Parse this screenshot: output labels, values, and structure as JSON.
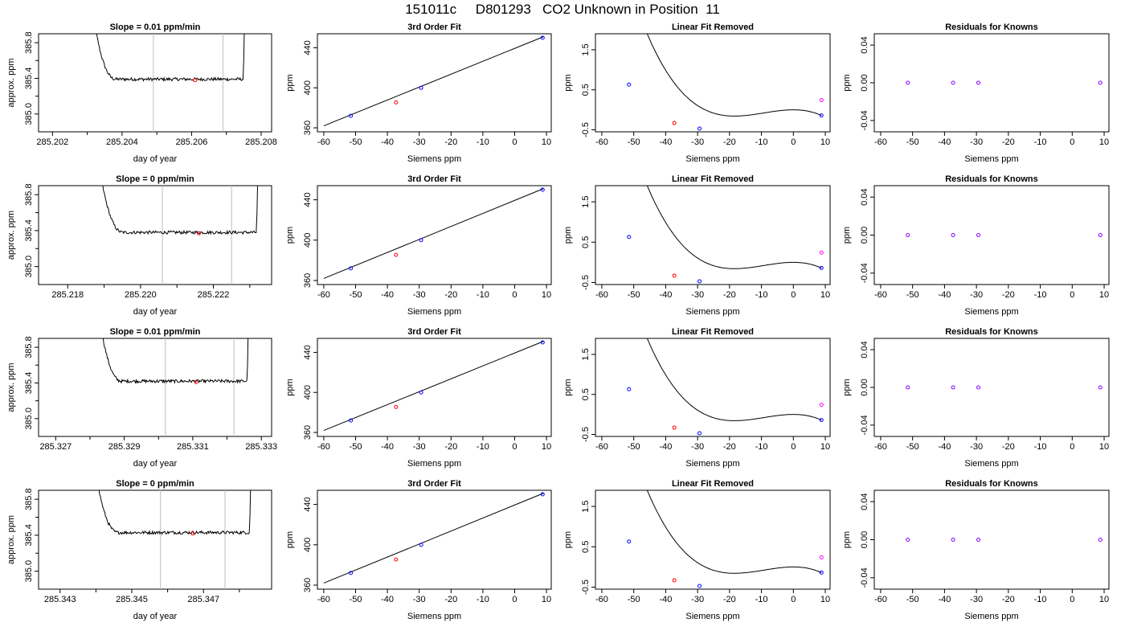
{
  "title": "151011c     D801293   CO2 Unknown in Position  11",
  "colors": {
    "known": "#0000ff",
    "unknown_fit": "#ff0000",
    "unknown_resid": "#ff00ff",
    "residual_pt": "#8000ff",
    "window": "#bebebe",
    "line": "#000000"
  },
  "chart_data": [
    {
      "type": "line",
      "title": "Slope =  0.01  ppm/min",
      "xlabel": "day of year",
      "ylabel": "approx. ppm",
      "xlim": [
        285.2016,
        285.2083
      ],
      "ylim": [
        384.8,
        385.9
      ],
      "xticks": [
        285.202,
        285.204,
        285.206,
        285.208
      ],
      "xtick_labels": [
        "285.202",
        "285.204",
        "285.206",
        "285.208"
      ],
      "yticks": [
        385.0,
        385.4,
        385.8
      ],
      "ytick_labels": [
        "385.0",
        "385.4",
        "385.8"
      ],
      "window": [
        285.2049,
        285.2069
      ],
      "trace_start": 285.2031,
      "trace_end": 285.2076,
      "plateau": 385.39,
      "mean_point": {
        "x": 285.2061,
        "y": 385.38
      }
    },
    {
      "type": "scatter",
      "title": "3rd Order Fit",
      "xlabel": "Siemens ppm",
      "ylabel": "ppm",
      "xlim": [
        -62,
        11.5
      ],
      "ylim": [
        356,
        454
      ],
      "xticks": [
        -60,
        -50,
        -40,
        -30,
        -20,
        -10,
        0,
        10
      ],
      "xtick_labels": [
        "-60",
        "-50",
        "-40",
        "-30",
        "-20",
        "-10",
        "0",
        "10"
      ],
      "yticks": [
        360,
        400,
        440
      ],
      "ytick_labels": [
        "360",
        "400",
        "440"
      ],
      "line": {
        "x": [
          -60,
          9
        ],
        "y": [
          362,
          451
        ]
      },
      "knowns": [
        {
          "x": -51.5,
          "y": 372
        },
        {
          "x": -29.4,
          "y": 400
        },
        {
          "x": 8.8,
          "y": 450
        }
      ],
      "unknown": {
        "x": -37.3,
        "y": 385.4
      }
    },
    {
      "type": "line",
      "title": "Linear Fit Removed",
      "xlabel": "Siemens ppm",
      "ylabel": "ppm",
      "xlim": [
        -62,
        11.5
      ],
      "ylim": [
        -0.55,
        1.9
      ],
      "xticks": [
        -60,
        -50,
        -40,
        -30,
        -20,
        -10,
        0,
        10
      ],
      "xtick_labels": [
        "-60",
        "-50",
        "-40",
        "-30",
        "-20",
        "-10",
        "0",
        "10"
      ],
      "yticks": [
        -0.5,
        0.5,
        1.5
      ],
      "ytick_labels": [
        "-0.5",
        "0.5",
        "1.5"
      ],
      "curve_coeffs": [
        0.0,
        0.0,
        -0.001383,
        -5e-05
      ],
      "curve_range": [
        -60,
        8.8
      ],
      "knowns": [
        {
          "x": -51.5,
          "y": 0.63
        },
        {
          "x": -29.4,
          "y": -0.47
        },
        {
          "x": 8.8,
          "y": -0.14
        }
      ],
      "unknown": {
        "x": -37.3,
        "y": -0.33
      },
      "unknown_resid": {
        "x": 8.8,
        "y": 0.24
      }
    },
    {
      "type": "scatter",
      "title": "Residuals for Knowns",
      "xlabel": "Siemens ppm",
      "ylabel": "ppm",
      "xlim": [
        -62,
        11.5
      ],
      "ylim": [
        -0.052,
        0.052
      ],
      "xticks": [
        -60,
        -50,
        -40,
        -30,
        -20,
        -10,
        0,
        10
      ],
      "xtick_labels": [
        "-60",
        "-50",
        "-40",
        "-30",
        "-20",
        "-10",
        "0",
        "10"
      ],
      "yticks": [
        -0.04,
        0.0,
        0.04
      ],
      "ytick_labels": [
        "-0.04",
        "0.00",
        "0.04"
      ],
      "points": [
        {
          "x": -51.5,
          "y": 0.0
        },
        {
          "x": -37.3,
          "y": 0.0
        },
        {
          "x": -29.4,
          "y": 0.0
        },
        {
          "x": 8.8,
          "y": 0.0
        }
      ]
    },
    {
      "type": "line",
      "title": "Slope =  0  ppm/min",
      "xlabel": "day of year",
      "ylabel": "approx. ppm",
      "xlim": [
        285.2172,
        285.2236
      ],
      "ylim": [
        384.8,
        385.9
      ],
      "xticks": [
        285.218,
        285.22,
        285.222
      ],
      "xtick_labels": [
        "285.218",
        "285.220",
        "285.222"
      ],
      "yticks": [
        385.0,
        385.4,
        385.8
      ],
      "ytick_labels": [
        "385.0",
        "385.4",
        "385.8"
      ],
      "window": [
        285.2206,
        285.2225
      ],
      "trace_start": 285.2188,
      "trace_end": 285.2233,
      "plateau": 385.38,
      "mean_point": {
        "x": 285.2216,
        "y": 385.37
      }
    },
    {
      "type": "scatter",
      "title": "3rd Order Fit",
      "xlabel": "Siemens ppm",
      "ylabel": "ppm",
      "xlim": [
        -62,
        11.5
      ],
      "ylim": [
        356,
        454
      ],
      "xticks": [
        -60,
        -50,
        -40,
        -30,
        -20,
        -10,
        0,
        10
      ],
      "xtick_labels": [
        "-60",
        "-50",
        "-40",
        "-30",
        "-20",
        "-10",
        "0",
        "10"
      ],
      "yticks": [
        360,
        400,
        440
      ],
      "ytick_labels": [
        "360",
        "400",
        "440"
      ],
      "line": {
        "x": [
          -60,
          9
        ],
        "y": [
          362,
          451
        ]
      },
      "knowns": [
        {
          "x": -51.5,
          "y": 372
        },
        {
          "x": -29.4,
          "y": 400
        },
        {
          "x": 8.8,
          "y": 450
        }
      ],
      "unknown": {
        "x": -37.3,
        "y": 385.4
      }
    },
    {
      "type": "line",
      "title": "Linear Fit Removed",
      "xlabel": "Siemens ppm",
      "ylabel": "ppm",
      "xlim": [
        -62,
        11.5
      ],
      "ylim": [
        -0.55,
        1.9
      ],
      "xticks": [
        -60,
        -50,
        -40,
        -30,
        -20,
        -10,
        0,
        10
      ],
      "xtick_labels": [
        "-60",
        "-50",
        "-40",
        "-30",
        "-20",
        "-10",
        "0",
        "10"
      ],
      "yticks": [
        -0.5,
        0.5,
        1.5
      ],
      "ytick_labels": [
        "-0.5",
        "0.5",
        "1.5"
      ],
      "curve_coeffs": [
        0.0,
        0.0,
        -0.001383,
        -5e-05
      ],
      "curve_range": [
        -60,
        8.8
      ],
      "knowns": [
        {
          "x": -51.5,
          "y": 0.63
        },
        {
          "x": -29.4,
          "y": -0.47
        },
        {
          "x": 8.8,
          "y": -0.14
        }
      ],
      "unknown": {
        "x": -37.3,
        "y": -0.33
      },
      "unknown_resid": {
        "x": 8.8,
        "y": 0.24
      }
    },
    {
      "type": "scatter",
      "title": "Residuals for Knowns",
      "xlabel": "Siemens ppm",
      "ylabel": "ppm",
      "xlim": [
        -62,
        11.5
      ],
      "ylim": [
        -0.052,
        0.052
      ],
      "xticks": [
        -60,
        -50,
        -40,
        -30,
        -20,
        -10,
        0,
        10
      ],
      "xtick_labels": [
        "-60",
        "-50",
        "-40",
        "-30",
        "-20",
        "-10",
        "0",
        "10"
      ],
      "yticks": [
        -0.04,
        0.0,
        0.04
      ],
      "ytick_labels": [
        "-0.04",
        "0.00",
        "0.04"
      ],
      "points": [
        {
          "x": -51.5,
          "y": 0.0
        },
        {
          "x": -37.3,
          "y": 0.0
        },
        {
          "x": -29.4,
          "y": 0.0
        },
        {
          "x": 8.8,
          "y": 0.0
        }
      ]
    },
    {
      "type": "line",
      "title": "Slope =  0.01  ppm/min",
      "xlabel": "day of year",
      "ylabel": "approx. ppm",
      "xlim": [
        285.3265,
        285.3333
      ],
      "ylim": [
        384.8,
        385.9
      ],
      "xticks": [
        285.327,
        285.329,
        285.331,
        285.333
      ],
      "xtick_labels": [
        "285.327",
        "285.329",
        "285.331",
        "285.333"
      ],
      "yticks": [
        385.0,
        385.4,
        385.8
      ],
      "ytick_labels": [
        "385.0",
        "385.4",
        "385.8"
      ],
      "window": [
        285.3302,
        285.3322
      ],
      "trace_start": 285.3282,
      "trace_end": 285.3327,
      "plateau": 385.42,
      "mean_point": {
        "x": 285.3311,
        "y": 385.41
      }
    },
    {
      "type": "scatter",
      "title": "3rd Order Fit",
      "xlabel": "Siemens ppm",
      "ylabel": "ppm",
      "xlim": [
        -62,
        11.5
      ],
      "ylim": [
        356,
        454
      ],
      "xticks": [
        -60,
        -50,
        -40,
        -30,
        -20,
        -10,
        0,
        10
      ],
      "xtick_labels": [
        "-60",
        "-50",
        "-40",
        "-30",
        "-20",
        "-10",
        "0",
        "10"
      ],
      "yticks": [
        360,
        400,
        440
      ],
      "ytick_labels": [
        "360",
        "400",
        "440"
      ],
      "line": {
        "x": [
          -60,
          9
        ],
        "y": [
          362,
          451
        ]
      },
      "knowns": [
        {
          "x": -51.5,
          "y": 372
        },
        {
          "x": -29.4,
          "y": 400
        },
        {
          "x": 8.8,
          "y": 450
        }
      ],
      "unknown": {
        "x": -37.3,
        "y": 385.4
      }
    },
    {
      "type": "line",
      "title": "Linear Fit Removed",
      "xlabel": "Siemens ppm",
      "ylabel": "ppm",
      "xlim": [
        -62,
        11.5
      ],
      "ylim": [
        -0.55,
        1.9
      ],
      "xticks": [
        -60,
        -50,
        -40,
        -30,
        -20,
        -10,
        0,
        10
      ],
      "xtick_labels": [
        "-60",
        "-50",
        "-40",
        "-30",
        "-20",
        "-10",
        "0",
        "10"
      ],
      "yticks": [
        -0.5,
        0.5,
        1.5
      ],
      "ytick_labels": [
        "-0.5",
        "0.5",
        "1.5"
      ],
      "curve_coeffs": [
        0.0,
        0.0,
        -0.001383,
        -5e-05
      ],
      "curve_range": [
        -60,
        8.8
      ],
      "knowns": [
        {
          "x": -51.5,
          "y": 0.63
        },
        {
          "x": -29.4,
          "y": -0.47
        },
        {
          "x": 8.8,
          "y": -0.14
        }
      ],
      "unknown": {
        "x": -37.3,
        "y": -0.33
      },
      "unknown_resid": {
        "x": 8.8,
        "y": 0.24
      }
    },
    {
      "type": "scatter",
      "title": "Residuals for Knowns",
      "xlabel": "Siemens ppm",
      "ylabel": "ppm",
      "xlim": [
        -62,
        11.5
      ],
      "ylim": [
        -0.052,
        0.052
      ],
      "xticks": [
        -60,
        -50,
        -40,
        -30,
        -20,
        -10,
        0,
        10
      ],
      "xtick_labels": [
        "-60",
        "-50",
        "-40",
        "-30",
        "-20",
        "-10",
        "0",
        "10"
      ],
      "yticks": [
        -0.04,
        0.0,
        0.04
      ],
      "ytick_labels": [
        "-0.04",
        "0.00",
        "0.04"
      ],
      "points": [
        {
          "x": -51.5,
          "y": 0.0
        },
        {
          "x": -37.3,
          "y": 0.0
        },
        {
          "x": -29.4,
          "y": 0.0
        },
        {
          "x": 8.8,
          "y": 0.0
        }
      ]
    },
    {
      "type": "line",
      "title": "Slope =  0  ppm/min",
      "xlabel": "day of year",
      "ylabel": "approx. ppm",
      "xlim": [
        285.3424,
        285.3489
      ],
      "ylim": [
        384.8,
        385.9
      ],
      "xticks": [
        285.343,
        285.345,
        285.347
      ],
      "xtick_labels": [
        "285.343",
        "285.345",
        "285.347"
      ],
      "yticks": [
        385.0,
        385.4,
        385.8
      ],
      "ytick_labels": [
        "385.0",
        "385.4",
        "385.8"
      ],
      "window": [
        285.3458,
        285.3476
      ],
      "trace_start": 285.3439,
      "trace_end": 285.3484,
      "plateau": 385.43,
      "mean_point": {
        "x": 285.3467,
        "y": 385.42
      }
    },
    {
      "type": "scatter",
      "title": "3rd Order Fit",
      "xlabel": "Siemens ppm",
      "ylabel": "ppm",
      "xlim": [
        -62,
        11.5
      ],
      "ylim": [
        356,
        454
      ],
      "xticks": [
        -60,
        -50,
        -40,
        -30,
        -20,
        -10,
        0,
        10
      ],
      "xtick_labels": [
        "-60",
        "-50",
        "-40",
        "-30",
        "-20",
        "-10",
        "0",
        "10"
      ],
      "yticks": [
        360,
        400,
        440
      ],
      "ytick_labels": [
        "360",
        "400",
        "440"
      ],
      "line": {
        "x": [
          -60,
          9
        ],
        "y": [
          362,
          451
        ]
      },
      "knowns": [
        {
          "x": -51.5,
          "y": 372
        },
        {
          "x": -29.4,
          "y": 400
        },
        {
          "x": 8.8,
          "y": 450
        }
      ],
      "unknown": {
        "x": -37.3,
        "y": 385.4
      }
    },
    {
      "type": "line",
      "title": "Linear Fit Removed",
      "xlabel": "Siemens ppm",
      "ylabel": "ppm",
      "xlim": [
        -62,
        11.5
      ],
      "ylim": [
        -0.55,
        1.9
      ],
      "xticks": [
        -60,
        -50,
        -40,
        -30,
        -20,
        -10,
        0,
        10
      ],
      "xtick_labels": [
        "-60",
        "-50",
        "-40",
        "-30",
        "-20",
        "-10",
        "0",
        "10"
      ],
      "yticks": [
        -0.5,
        0.5,
        1.5
      ],
      "ytick_labels": [
        "-0.5",
        "0.5",
        "1.5"
      ],
      "curve_coeffs": [
        0.0,
        0.0,
        -0.001383,
        -5e-05
      ],
      "curve_range": [
        -60,
        8.8
      ],
      "knowns": [
        {
          "x": -51.5,
          "y": 0.63
        },
        {
          "x": -29.4,
          "y": -0.47
        },
        {
          "x": 8.8,
          "y": -0.14
        }
      ],
      "unknown": {
        "x": -37.3,
        "y": -0.33
      },
      "unknown_resid": {
        "x": 8.8,
        "y": 0.24
      }
    },
    {
      "type": "scatter",
      "title": "Residuals for Knowns",
      "xlabel": "Siemens ppm",
      "ylabel": "ppm",
      "xlim": [
        -62,
        11.5
      ],
      "ylim": [
        -0.052,
        0.052
      ],
      "xticks": [
        -60,
        -50,
        -40,
        -30,
        -20,
        -10,
        0,
        10
      ],
      "xtick_labels": [
        "-60",
        "-50",
        "-40",
        "-30",
        "-20",
        "-10",
        "0",
        "10"
      ],
      "yticks": [
        -0.04,
        0.0,
        0.04
      ],
      "ytick_labels": [
        "-0.04",
        "0.00",
        "0.04"
      ],
      "points": [
        {
          "x": -51.5,
          "y": 0.0
        },
        {
          "x": -37.3,
          "y": 0.0
        },
        {
          "x": -29.4,
          "y": 0.0
        },
        {
          "x": 8.8,
          "y": 0.0
        }
      ]
    }
  ]
}
